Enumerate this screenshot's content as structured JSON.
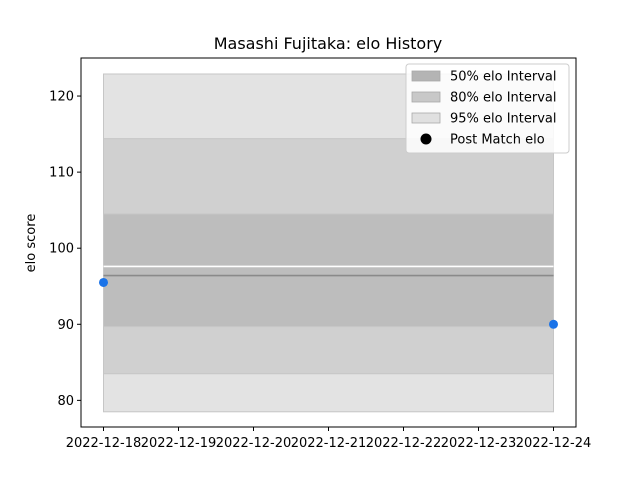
{
  "chart_data": {
    "type": "area",
    "title": "Masashi Fujitaka: elo History",
    "xlabel": "",
    "ylabel": "elo score",
    "x_ticks": [
      "2022-12-18",
      "2022-12-19",
      "2022-12-20",
      "2022-12-21",
      "2022-12-22",
      "2022-12-23",
      "2022-12-24"
    ],
    "y_ticks": [
      80,
      90,
      100,
      110,
      120
    ],
    "xlim": [
      "2022-12-17.7",
      "2022-12-24.3"
    ],
    "ylim": [
      76.5,
      125
    ],
    "grid": false,
    "legend_position": "top-right",
    "bands": [
      {
        "name": "95% elo Interval",
        "x": [
          "2022-12-18",
          "2022-12-24"
        ],
        "low": 78.5,
        "high": 122.9,
        "color": "#e3e3e3"
      },
      {
        "name": "80% elo Interval",
        "x": [
          "2022-12-18",
          "2022-12-24"
        ],
        "low": 83.5,
        "high": 114.4,
        "color": "#d0d0d0"
      },
      {
        "name": "50% elo Interval",
        "x": [
          "2022-12-18",
          "2022-12-24"
        ],
        "low": 89.7,
        "high": 104.5,
        "color": "#bdbdbd"
      }
    ],
    "lines": [
      {
        "role": "median",
        "x": [
          "2022-12-18",
          "2022-12-24"
        ],
        "y": [
          96.4,
          96.4
        ],
        "color": "#8a8a8a"
      },
      {
        "role": "mean",
        "x": [
          "2022-12-18",
          "2022-12-24"
        ],
        "y": [
          97.6,
          97.6
        ],
        "color": "#ffffff"
      }
    ],
    "series": [
      {
        "name": "Post Match elo",
        "x": [
          "2022-12-18",
          "2022-12-24"
        ],
        "y": [
          95.5,
          90.0
        ],
        "color": "#1a73e8"
      }
    ],
    "legend": [
      {
        "label": "50% elo Interval",
        "kind": "patch",
        "color": "#b4b4b4"
      },
      {
        "label": "80% elo Interval",
        "kind": "patch",
        "color": "#c8c8c8"
      },
      {
        "label": "95% elo Interval",
        "kind": "patch",
        "color": "#e0e0e0"
      },
      {
        "label": "Post Match elo",
        "kind": "marker",
        "color": "#000000"
      }
    ]
  }
}
